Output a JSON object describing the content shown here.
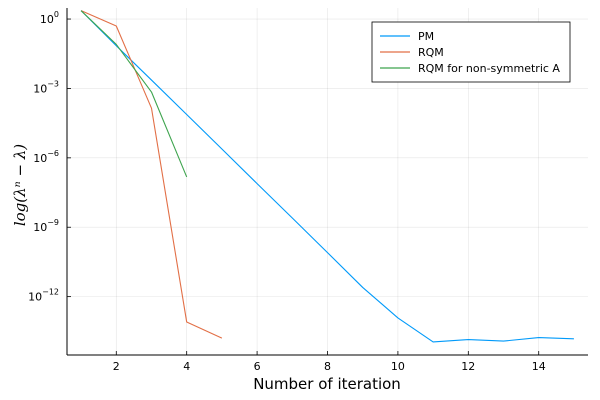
{
  "chart_data": {
    "type": "line",
    "title": "",
    "xlabel": "Number of iteration",
    "ylabel": "log(λⁿ − λ)",
    "x_scale": "linear",
    "y_scale": "log",
    "xlim": [
      0.6,
      15.4
    ],
    "ylim": [
      3e-15,
      3
    ],
    "grid": true,
    "legend_position": "top-right",
    "x_ticks": [
      2,
      4,
      6,
      8,
      10,
      12,
      14
    ],
    "x_tick_labels": [
      "2",
      "4",
      "6",
      "8",
      "10",
      "12",
      "14"
    ],
    "y_ticks": [
      1e-12,
      1e-09,
      1e-06,
      0.001,
      1
    ],
    "y_tick_labels": [
      {
        "base": "10",
        "exp": "−12"
      },
      {
        "base": "10",
        "exp": "−9"
      },
      {
        "base": "10",
        "exp": "−6"
      },
      {
        "base": "10",
        "exp": "−3"
      },
      {
        "base": "10",
        "exp": "0"
      }
    ],
    "series": [
      {
        "name": "PM",
        "color": "#009AFA",
        "x": [
          1,
          2,
          3,
          4,
          5,
          6,
          7,
          8,
          9,
          10,
          11,
          12,
          13,
          14,
          15
        ],
        "y": [
          2.3,
          0.07,
          0.0023,
          7.5e-05,
          2.4e-06,
          7.7e-08,
          2.5e-09,
          8e-11,
          2.5e-12,
          1.2e-13,
          1.1e-14,
          1.4e-14,
          1.2e-14,
          1.7e-14,
          1.5e-14
        ]
      },
      {
        "name": "RQM",
        "color": "#E26F46",
        "x": [
          1,
          2,
          3,
          4,
          5
        ],
        "y": [
          2.3,
          0.5,
          0.00014,
          8e-14,
          1.6e-14
        ]
      },
      {
        "name": "RQM for non-symmetric A",
        "color": "#3EA44E",
        "x": [
          1,
          2,
          3,
          4
        ],
        "y": [
          2.3,
          0.08,
          0.0007,
          1.5e-07
        ]
      }
    ]
  }
}
